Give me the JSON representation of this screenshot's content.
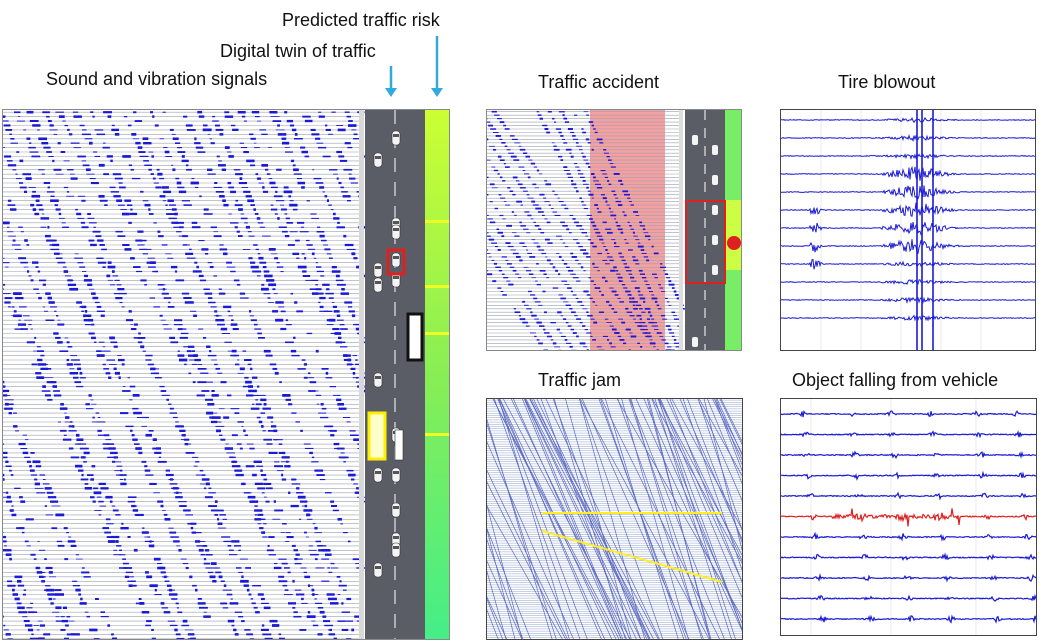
{
  "labels": {
    "predicted_risk": "Predicted traffic risk",
    "digital_twin": "Digital twin of traffic",
    "sound_vibration": "Sound and vibration signals",
    "traffic_accident": "Traffic accident",
    "tire_blowout": "Tire blowout",
    "traffic_jam": "Traffic jam",
    "object_falling": "Object falling from vehicle"
  },
  "colors": {
    "signal": "#1a1ad6",
    "road": "#5a5d66",
    "lane_marking": "#ffffff",
    "risk_high": "#ccff33",
    "risk_low": "#44ee88",
    "accident_band": "#f08080",
    "highlight_red": "#e02020",
    "highlight_yellow": "#ffee00",
    "arrow": "#33aadd",
    "jam_line": "#ffee22"
  }
}
